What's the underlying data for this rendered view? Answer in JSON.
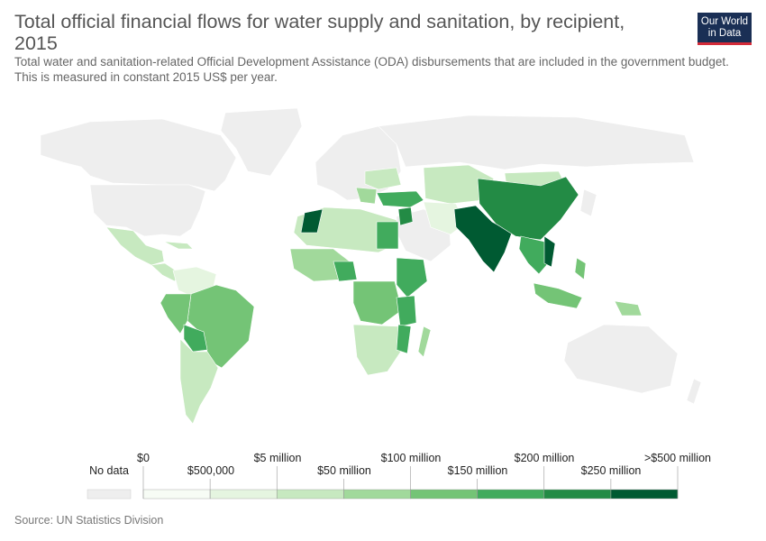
{
  "title": "Total official financial flows for water supply and sanitation, by recipient, 2015",
  "subtitle": "Total water and sanitation-related Official Development Assistance (ODA) disbursements that are included in the government budget. This is measured in constant 2015 US$ per year.",
  "logo": {
    "line1": "Our World",
    "line2": "in Data"
  },
  "source": "Source: UN Statistics Division",
  "legend": {
    "no_data_label": "No data",
    "no_data_color": "#eeeeee",
    "bins": [
      {
        "color": "#f7fcf5"
      },
      {
        "color": "#e5f5e0"
      },
      {
        "color": "#c7e9c0"
      },
      {
        "color": "#a1d99b"
      },
      {
        "color": "#74c476"
      },
      {
        "color": "#41ab5d"
      },
      {
        "color": "#238b45"
      },
      {
        "color": "#005a32"
      }
    ],
    "ticks_top": [
      "$0",
      "$5 million",
      "$100 million",
      "$200 million",
      ">$500 million"
    ],
    "ticks_bottom": [
      "$500,000",
      "$50 million",
      "$150 million",
      "$250 million"
    ]
  }
}
